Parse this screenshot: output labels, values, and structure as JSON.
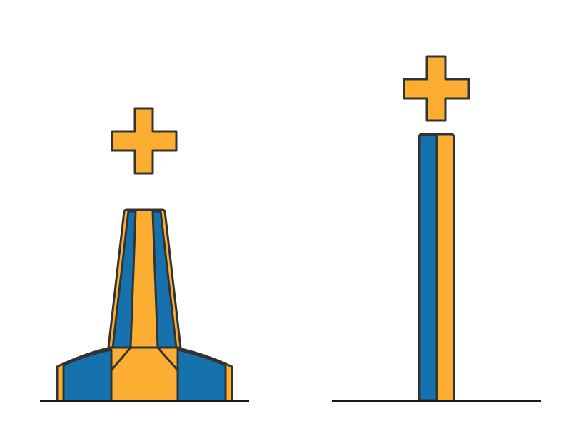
{
  "colors": {
    "blue": "#1572AD",
    "orange": "#FBAE32",
    "outline": "#333333",
    "ground": "#1a1a1a",
    "background": "#ffffff"
  },
  "figures": [
    {
      "name": "bell-tower",
      "description_icon": "plus-icon",
      "stripes": [
        "orange",
        "blue",
        "orange",
        "blue",
        "orange"
      ]
    },
    {
      "name": "tall-bar",
      "description_icon": "plus-icon",
      "stripes": [
        "blue",
        "orange"
      ]
    }
  ]
}
